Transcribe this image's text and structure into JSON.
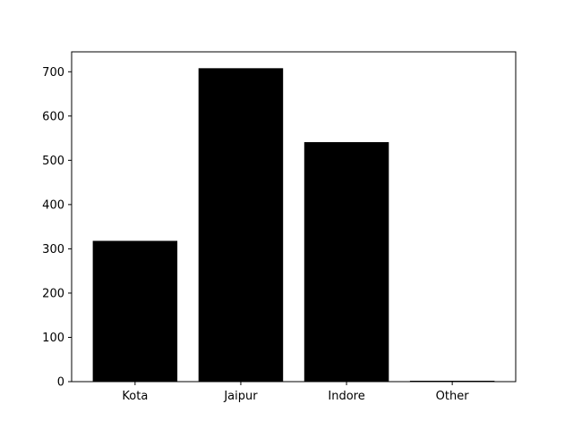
{
  "chart_data": {
    "type": "bar",
    "title": "",
    "xlabel": "",
    "ylabel": "",
    "categories": [
      "Kota",
      "Jaipur",
      "Indore",
      "Other"
    ],
    "values": [
      318,
      708,
      541,
      2
    ],
    "ylim": [
      0,
      745
    ],
    "yticks": [
      0,
      100,
      200,
      300,
      400,
      500,
      600,
      700
    ],
    "grid": false,
    "legend": "none",
    "colors": {
      "bar": "#000000",
      "axes": "#000000",
      "background": "#ffffff"
    }
  }
}
